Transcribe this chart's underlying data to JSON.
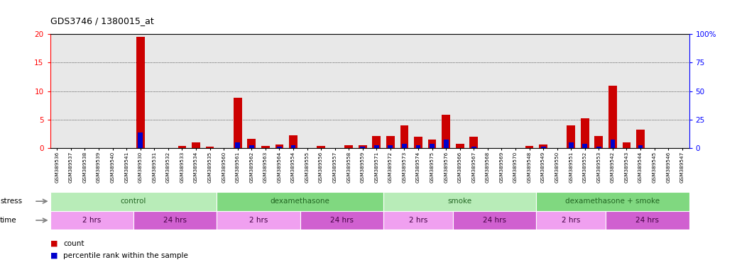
{
  "title": "GDS3746 / 1380015_at",
  "samples": [
    "GSM389536",
    "GSM389537",
    "GSM389538",
    "GSM389539",
    "GSM389540",
    "GSM389541",
    "GSM389530",
    "GSM389531",
    "GSM389532",
    "GSM389533",
    "GSM389534",
    "GSM389535",
    "GSM389560",
    "GSM389561",
    "GSM389562",
    "GSM389563",
    "GSM389564",
    "GSM389554",
    "GSM389555",
    "GSM389556",
    "GSM389557",
    "GSM389558",
    "GSM389559",
    "GSM389571",
    "GSM389572",
    "GSM389573",
    "GSM389574",
    "GSM389575",
    "GSM389576",
    "GSM389566",
    "GSM389567",
    "GSM389568",
    "GSM389569",
    "GSM389570",
    "GSM389548",
    "GSM389549",
    "GSM389550",
    "GSM389551",
    "GSM389552",
    "GSM389553",
    "GSM389542",
    "GSM389543",
    "GSM389544",
    "GSM389545",
    "GSM389546",
    "GSM389547"
  ],
  "count": [
    0,
    0,
    0,
    0,
    0,
    0,
    19.5,
    0,
    0,
    0.4,
    1.0,
    0.3,
    0,
    8.8,
    1.6,
    0.4,
    0.6,
    2.3,
    0,
    0.4,
    0,
    0.5,
    0.5,
    2.1,
    2.2,
    4.0,
    2.0,
    1.5,
    5.9,
    0.8,
    2.0,
    0,
    0,
    0,
    0.4,
    0.6,
    0,
    4.0,
    5.2,
    2.2,
    11.0,
    1.0,
    3.3,
    0,
    0,
    0
  ],
  "percentile_pct": [
    0,
    0,
    0,
    0,
    0,
    0,
    14,
    0,
    0,
    0,
    0,
    0,
    0,
    5,
    2.5,
    0,
    1.5,
    2.5,
    0,
    0,
    0,
    0,
    1.5,
    2.5,
    2.5,
    4,
    2.5,
    4,
    7.5,
    0,
    1.5,
    0,
    0,
    0,
    0,
    1.5,
    0,
    5,
    4,
    1.5,
    7.5,
    0,
    2.5,
    0,
    0,
    0
  ],
  "ylim_left": [
    0,
    20
  ],
  "ylim_right": [
    0,
    100
  ],
  "yticks_left": [
    0,
    5,
    10,
    15,
    20
  ],
  "yticks_right": [
    0,
    25,
    50,
    75,
    100
  ],
  "ytick_labels_right": [
    "0",
    "25",
    "50",
    "75",
    "100%"
  ],
  "bar_color_count": "#cc0000",
  "bar_color_percentile": "#0000cc",
  "stress_groups": [
    {
      "label": "control",
      "start": 0,
      "end": 12,
      "color": "#b8ecb8"
    },
    {
      "label": "dexamethasone",
      "start": 12,
      "end": 24,
      "color": "#80d880"
    },
    {
      "label": "smoke",
      "start": 24,
      "end": 35,
      "color": "#b8ecb8"
    },
    {
      "label": "dexamethasone + smoke",
      "start": 35,
      "end": 46,
      "color": "#80d880"
    }
  ],
  "time_groups": [
    {
      "label": "2 hrs",
      "start": 0,
      "end": 6,
      "color": "#f0a0f0"
    },
    {
      "label": "24 hrs",
      "start": 6,
      "end": 12,
      "color": "#d060d0"
    },
    {
      "label": "2 hrs",
      "start": 12,
      "end": 18,
      "color": "#f0a0f0"
    },
    {
      "label": "24 hrs",
      "start": 18,
      "end": 24,
      "color": "#d060d0"
    },
    {
      "label": "2 hrs",
      "start": 24,
      "end": 29,
      "color": "#f0a0f0"
    },
    {
      "label": "24 hrs",
      "start": 29,
      "end": 35,
      "color": "#d060d0"
    },
    {
      "label": "2 hrs",
      "start": 35,
      "end": 40,
      "color": "#f0a0f0"
    },
    {
      "label": "24 hrs",
      "start": 40,
      "end": 46,
      "color": "#d060d0"
    }
  ],
  "grid_yticks": [
    5,
    10,
    15
  ],
  "bar_width": 0.6,
  "blue_bar_width": 0.35
}
